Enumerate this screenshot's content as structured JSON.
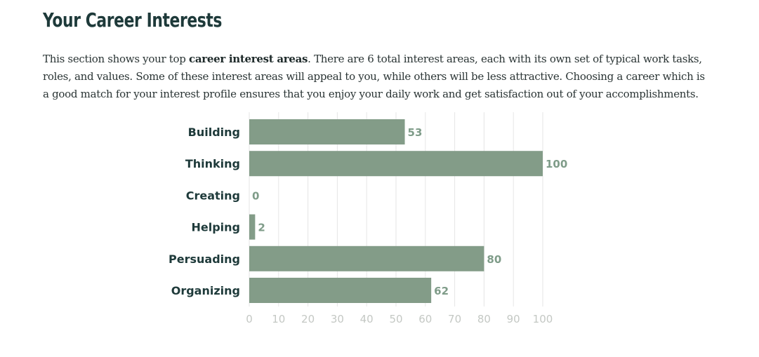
{
  "section": {
    "title": "Your Career Interests",
    "intro_before": "This section shows your top ",
    "intro_bold": "career interest areas",
    "intro_after": ". There are 6 total interest areas, each with its own set of typical work tasks, roles, and values. Some of these interest areas will appeal to you, while others will be less attractive. Choosing a career which is a good match for your interest profile ensures that you enjoy your daily work and get satisfaction out of your accomplishments."
  },
  "colors": {
    "bar": "#839c88",
    "title": "#1e3a3a",
    "grid": "#e6e6e6",
    "value_label": "#7f9c89",
    "tick_label": "#c4c8c4"
  },
  "chart_data": {
    "type": "bar",
    "orientation": "horizontal",
    "categories": [
      "Building",
      "Thinking",
      "Creating",
      "Helping",
      "Persuading",
      "Organizing"
    ],
    "values": [
      53,
      100,
      0,
      2,
      80,
      62
    ],
    "value_labels": [
      "53",
      "100",
      "0",
      "2",
      "80",
      "62"
    ],
    "xlim": [
      0,
      100
    ],
    "xticks": [
      0,
      10,
      20,
      30,
      40,
      50,
      60,
      70,
      80,
      90,
      100
    ],
    "xtick_labels": [
      "0",
      "10",
      "20",
      "30",
      "40",
      "50",
      "60",
      "70",
      "80",
      "90",
      "100"
    ],
    "grid": true
  }
}
